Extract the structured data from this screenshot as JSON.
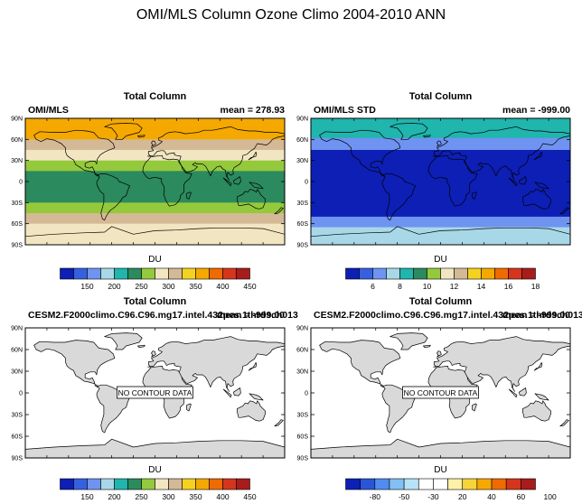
{
  "page_title": "OMI/MLS Column Ozone Climo 2004-2010 ANN",
  "chart_data": [
    {
      "type": "heatmap",
      "title": "Total Column",
      "left_label": "OMI/MLS",
      "right_label": "mean = 278.93",
      "units": "DU",
      "no_data": false,
      "lat_ticks": [
        "90N",
        "60N",
        "30N",
        "0",
        "30S",
        "60S",
        "90S"
      ],
      "colorbar_labels": [
        "150",
        "200",
        "250",
        "300",
        "350",
        "400",
        "450"
      ],
      "colors": [
        "#0d1fb5",
        "#3560e0",
        "#6f93f0",
        "#a8d8e8",
        "#20b5ad",
        "#2b8a5e",
        "#94c93c",
        "#f2e6c2",
        "#d4b996",
        "#f5d21f",
        "#f5a800",
        "#ef6a00",
        "#d4351c",
        "#a81c1c"
      ],
      "lat_bands": [
        {
          "lat_min": 60,
          "lat_max": 90,
          "value": 390
        },
        {
          "lat_min": 45,
          "lat_max": 60,
          "value": 340
        },
        {
          "lat_min": 30,
          "lat_max": 45,
          "value": 310
        },
        {
          "lat_min": 15,
          "lat_max": 30,
          "value": 275
        },
        {
          "lat_min": -15,
          "lat_max": 15,
          "value": 265
        },
        {
          "lat_min": -30,
          "lat_max": -15,
          "value": 270
        },
        {
          "lat_min": -45,
          "lat_max": -30,
          "value": 285
        },
        {
          "lat_min": -60,
          "lat_max": -45,
          "value": 330
        },
        {
          "lat_min": -75,
          "lat_max": -60,
          "value": 300
        },
        {
          "lat_min": -90,
          "lat_max": -75,
          "value": 300
        }
      ]
    },
    {
      "type": "heatmap",
      "title": "Total Column",
      "left_label": "OMI/MLS STD",
      "right_label": "mean = -999.00",
      "units": "DU",
      "no_data": false,
      "lat_ticks": [
        "90N",
        "60N",
        "30N",
        "0",
        "30S",
        "60S",
        "90S"
      ],
      "colorbar_labels": [
        "6",
        "8",
        "10",
        "12",
        "14",
        "16",
        "18"
      ],
      "colors": [
        "#0d1fb5",
        "#3560e0",
        "#6f93f0",
        "#a8d8e8",
        "#20b5ad",
        "#2b8a5e",
        "#94c93c",
        "#f2e6c2",
        "#d4b996",
        "#f5d21f",
        "#f5a800",
        "#ef6a00",
        "#d4351c",
        "#a81c1c"
      ],
      "lat_bands": [
        {
          "lat_min": 62,
          "lat_max": 90,
          "value": 9
        },
        {
          "lat_min": 45,
          "lat_max": 62,
          "value": 7
        },
        {
          "lat_min": -50,
          "lat_max": 45,
          "value": 5
        },
        {
          "lat_min": -65,
          "lat_max": -50,
          "value": 7
        },
        {
          "lat_min": -90,
          "lat_max": -65,
          "value": 8
        }
      ]
    },
    {
      "type": "heatmap",
      "title": "Total Column",
      "left_label": "CESM2.F2000climo.C96.C96.mg17.intel.432pes.1thrdsch013",
      "right_label": "mean = -999.00",
      "units": "DU",
      "no_data": true,
      "no_data_text": "NO CONTOUR DATA",
      "lat_ticks": [
        "90N",
        "60N",
        "30N",
        "0",
        "30S",
        "60S",
        "90S"
      ],
      "colorbar_labels": [
        "150",
        "200",
        "250",
        "300",
        "350",
        "400",
        "450"
      ],
      "colors": [
        "#0d1fb5",
        "#3560e0",
        "#6f93f0",
        "#a8d8e8",
        "#20b5ad",
        "#2b8a5e",
        "#94c93c",
        "#f2e6c2",
        "#d4b996",
        "#f5d21f",
        "#f5a800",
        "#ef6a00",
        "#d4351c",
        "#a81c1c"
      ]
    },
    {
      "type": "heatmap",
      "title": "Total Column",
      "left_label": "CESM2.F2000climo.C96.C96.mg17.intel.432pes.1thrdsch013",
      "right_label": "mean = -999.00",
      "units": "DU",
      "no_data": true,
      "no_data_text": "NO CONTOUR DATA",
      "lat_ticks": [
        "90N",
        "60N",
        "30N",
        "0",
        "30S",
        "60S",
        "90S"
      ],
      "colorbar_labels": [
        "-80",
        "-50",
        "-30",
        "20",
        "40",
        "60",
        "100"
      ],
      "colors": [
        "#0d1fb5",
        "#2a55d8",
        "#4e8cf0",
        "#82c0f5",
        "#b7e3f7",
        "#ffffff",
        "#ffffff",
        "#fff1a8",
        "#f7d43a",
        "#f7a800",
        "#ef6a00",
        "#d4351c",
        "#a81c1c"
      ]
    }
  ]
}
